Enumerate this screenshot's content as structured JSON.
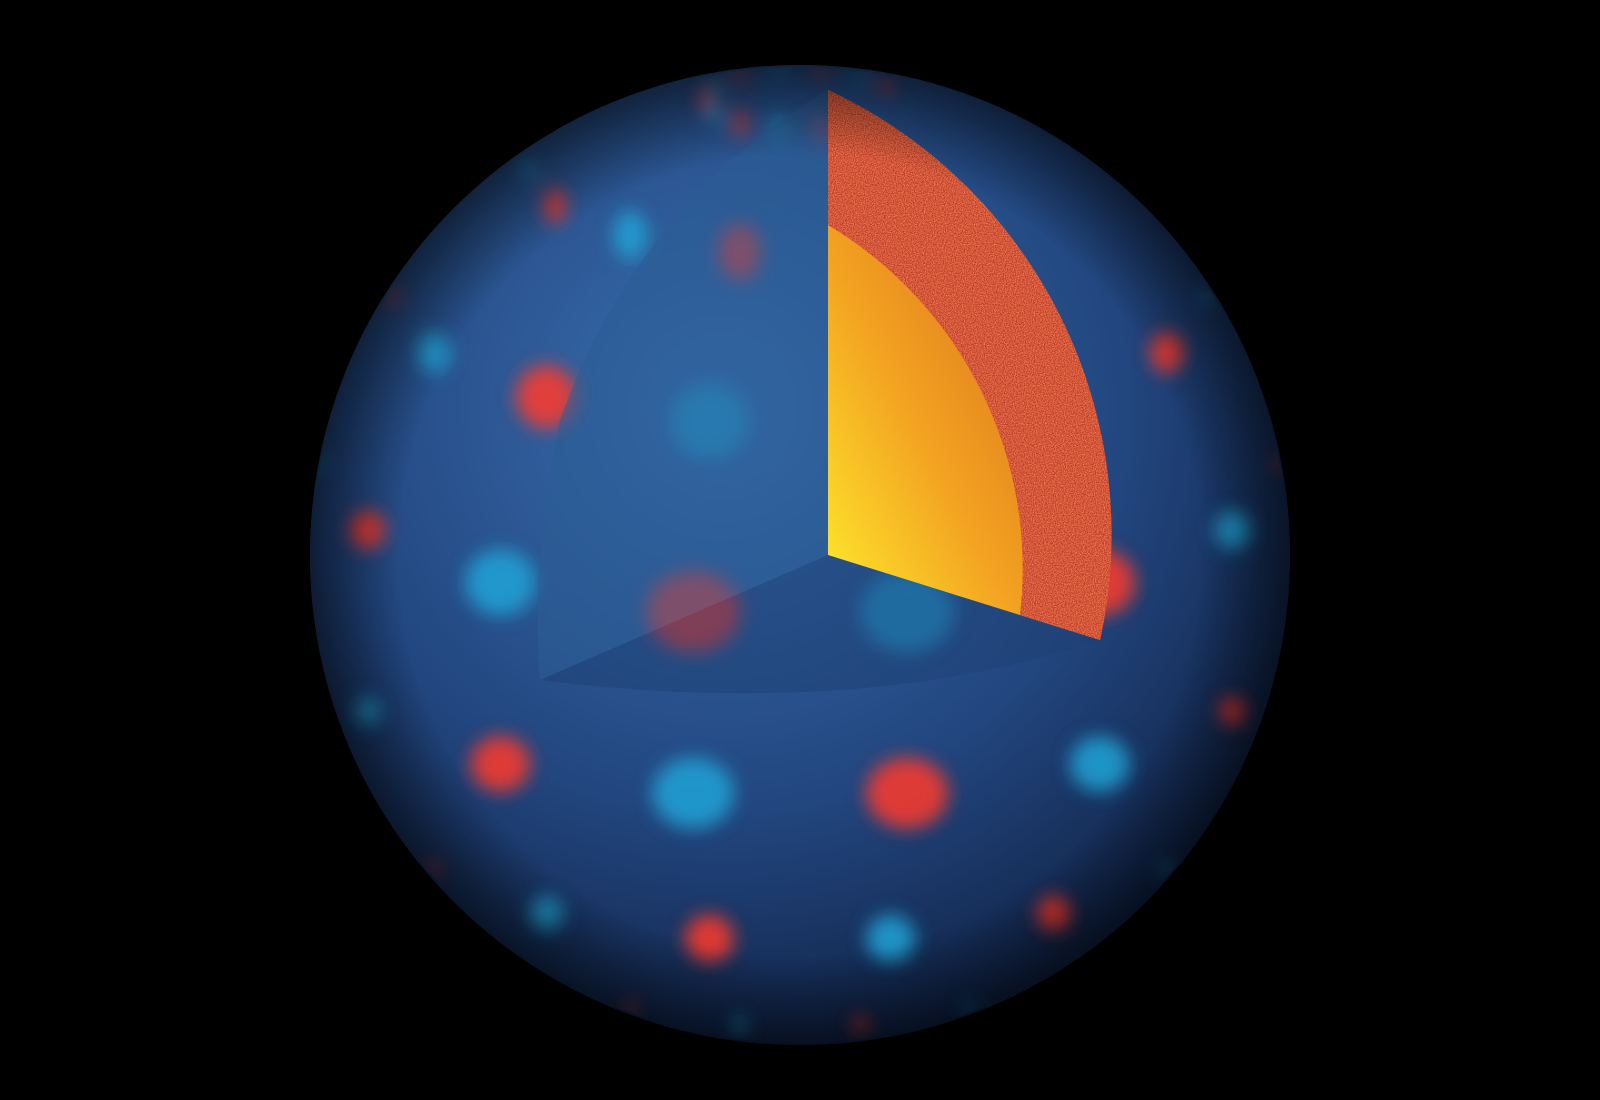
{
  "image": {
    "subject": "sphere-with-cutaway",
    "colors": {
      "background": "#000000",
      "sphere_base": "#1f3f7a",
      "oscillation_red": "#ff3b2a",
      "oscillation_blue": "#1fa3d6",
      "convection_zone": "#d9442a",
      "core_hot": "#ffe92a",
      "core_warm": "#f07a1e"
    },
    "mode_pattern": {
      "latitude_bands": 8,
      "longitude_cells": 14
    }
  }
}
